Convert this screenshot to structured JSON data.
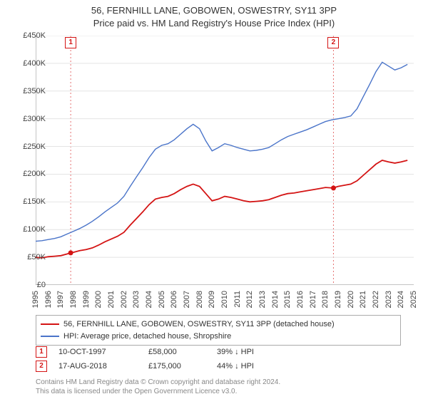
{
  "title1": "56, FERNHILL LANE, GOBOWEN, OSWESTRY, SY11 3PP",
  "title2": "Price paid vs. HM Land Registry's House Price Index (HPI)",
  "chart": {
    "type": "line",
    "background_color": "#ffffff",
    "grid_color": "#e4e4e4",
    "axis_color": "#888888",
    "font_size_ticks": 11,
    "x": {
      "min": 1995,
      "max": 2025,
      "ticks": [
        1995,
        1996,
        1997,
        1998,
        1999,
        2000,
        2001,
        2002,
        2003,
        2004,
        2005,
        2006,
        2007,
        2008,
        2009,
        2010,
        2011,
        2012,
        2013,
        2014,
        2015,
        2016,
        2017,
        2018,
        2019,
        2020,
        2021,
        2022,
        2023,
        2024,
        2025
      ]
    },
    "y": {
      "min": 0,
      "max": 450000,
      "prefix": "£",
      "suffix": "K",
      "divisor": 1000,
      "ticks": [
        0,
        50000,
        100000,
        150000,
        200000,
        250000,
        300000,
        350000,
        400000,
        450000
      ]
    },
    "series_property": {
      "label": "56, FERNHILL LANE, GOBOWEN, OSWESTRY, SY11 3PP (detached house)",
      "color": "#d41414",
      "line_width": 1.8,
      "points": [
        [
          1995.0,
          50000
        ],
        [
          1995.5,
          49000
        ],
        [
          1996.0,
          51000
        ],
        [
          1996.5,
          52000
        ],
        [
          1997.0,
          53000
        ],
        [
          1997.5,
          56000
        ],
        [
          1997.78,
          58000
        ],
        [
          1998.0,
          59000
        ],
        [
          1998.5,
          62000
        ],
        [
          1999.0,
          64000
        ],
        [
          1999.5,
          67000
        ],
        [
          2000.0,
          72000
        ],
        [
          2000.5,
          78000
        ],
        [
          2001.0,
          83000
        ],
        [
          2001.5,
          88000
        ],
        [
          2002.0,
          95000
        ],
        [
          2002.5,
          108000
        ],
        [
          2003.0,
          120000
        ],
        [
          2003.5,
          132000
        ],
        [
          2004.0,
          145000
        ],
        [
          2004.5,
          155000
        ],
        [
          2005.0,
          158000
        ],
        [
          2005.5,
          160000
        ],
        [
          2006.0,
          165000
        ],
        [
          2006.5,
          172000
        ],
        [
          2007.0,
          178000
        ],
        [
          2007.5,
          182000
        ],
        [
          2008.0,
          178000
        ],
        [
          2008.5,
          165000
        ],
        [
          2009.0,
          152000
        ],
        [
          2009.5,
          155000
        ],
        [
          2010.0,
          160000
        ],
        [
          2010.5,
          158000
        ],
        [
          2011.0,
          155000
        ],
        [
          2011.5,
          152000
        ],
        [
          2012.0,
          150000
        ],
        [
          2012.5,
          151000
        ],
        [
          2013.0,
          152000
        ],
        [
          2013.5,
          154000
        ],
        [
          2014.0,
          158000
        ],
        [
          2014.5,
          162000
        ],
        [
          2015.0,
          165000
        ],
        [
          2015.5,
          166000
        ],
        [
          2016.0,
          168000
        ],
        [
          2016.5,
          170000
        ],
        [
          2017.0,
          172000
        ],
        [
          2017.5,
          174000
        ],
        [
          2018.0,
          176000
        ],
        [
          2018.6,
          175000
        ],
        [
          2019.0,
          178000
        ],
        [
          2019.5,
          180000
        ],
        [
          2020.0,
          182000
        ],
        [
          2020.5,
          188000
        ],
        [
          2021.0,
          198000
        ],
        [
          2021.5,
          208000
        ],
        [
          2022.0,
          218000
        ],
        [
          2022.5,
          225000
        ],
        [
          2023.0,
          222000
        ],
        [
          2023.5,
          220000
        ],
        [
          2024.0,
          222000
        ],
        [
          2024.5,
          225000
        ]
      ]
    },
    "series_hpi": {
      "label": "HPI: Average price, detached house, Shropshire",
      "color": "#4a74c9",
      "line_width": 1.4,
      "points": [
        [
          1995.0,
          79000
        ],
        [
          1995.5,
          80000
        ],
        [
          1996.0,
          82000
        ],
        [
          1996.5,
          84000
        ],
        [
          1997.0,
          87000
        ],
        [
          1997.5,
          92000
        ],
        [
          1998.0,
          97000
        ],
        [
          1998.5,
          102000
        ],
        [
          1999.0,
          108000
        ],
        [
          1999.5,
          115000
        ],
        [
          2000.0,
          123000
        ],
        [
          2000.5,
          132000
        ],
        [
          2001.0,
          140000
        ],
        [
          2001.5,
          148000
        ],
        [
          2002.0,
          160000
        ],
        [
          2002.5,
          178000
        ],
        [
          2003.0,
          195000
        ],
        [
          2003.5,
          212000
        ],
        [
          2004.0,
          230000
        ],
        [
          2004.5,
          245000
        ],
        [
          2005.0,
          252000
        ],
        [
          2005.5,
          255000
        ],
        [
          2006.0,
          262000
        ],
        [
          2006.5,
          272000
        ],
        [
          2007.0,
          282000
        ],
        [
          2007.5,
          290000
        ],
        [
          2008.0,
          282000
        ],
        [
          2008.5,
          260000
        ],
        [
          2009.0,
          242000
        ],
        [
          2009.5,
          248000
        ],
        [
          2010.0,
          255000
        ],
        [
          2010.5,
          252000
        ],
        [
          2011.0,
          248000
        ],
        [
          2011.5,
          245000
        ],
        [
          2012.0,
          242000
        ],
        [
          2012.5,
          243000
        ],
        [
          2013.0,
          245000
        ],
        [
          2013.5,
          248000
        ],
        [
          2014.0,
          255000
        ],
        [
          2014.5,
          262000
        ],
        [
          2015.0,
          268000
        ],
        [
          2015.5,
          272000
        ],
        [
          2016.0,
          276000
        ],
        [
          2016.5,
          280000
        ],
        [
          2017.0,
          285000
        ],
        [
          2017.5,
          290000
        ],
        [
          2018.0,
          295000
        ],
        [
          2018.5,
          298000
        ],
        [
          2019.0,
          300000
        ],
        [
          2019.5,
          302000
        ],
        [
          2020.0,
          305000
        ],
        [
          2020.5,
          318000
        ],
        [
          2021.0,
          340000
        ],
        [
          2021.5,
          362000
        ],
        [
          2022.0,
          385000
        ],
        [
          2022.5,
          402000
        ],
        [
          2023.0,
          395000
        ],
        [
          2023.5,
          388000
        ],
        [
          2024.0,
          392000
        ],
        [
          2024.5,
          398000
        ]
      ]
    },
    "sale_markers": [
      {
        "n": "1",
        "year": 1997.78,
        "price": 58000,
        "color": "#d41414",
        "band_color": "#f7dada"
      },
      {
        "n": "2",
        "year": 2018.63,
        "price": 175000,
        "color": "#d41414",
        "band_color": "#f7dada"
      }
    ]
  },
  "legend": {
    "border_color": "#aaaaaa"
  },
  "sales": [
    {
      "n": "1",
      "date": "10-OCT-1997",
      "price": "£58,000",
      "diff": "39% ↓ HPI",
      "color": "#d41414"
    },
    {
      "n": "2",
      "date": "17-AUG-2018",
      "price": "£175,000",
      "diff": "44% ↓ HPI",
      "color": "#d41414"
    }
  ],
  "attrib1": "Contains HM Land Registry data © Crown copyright and database right 2024.",
  "attrib2": "This data is licensed under the Open Government Licence v3.0."
}
